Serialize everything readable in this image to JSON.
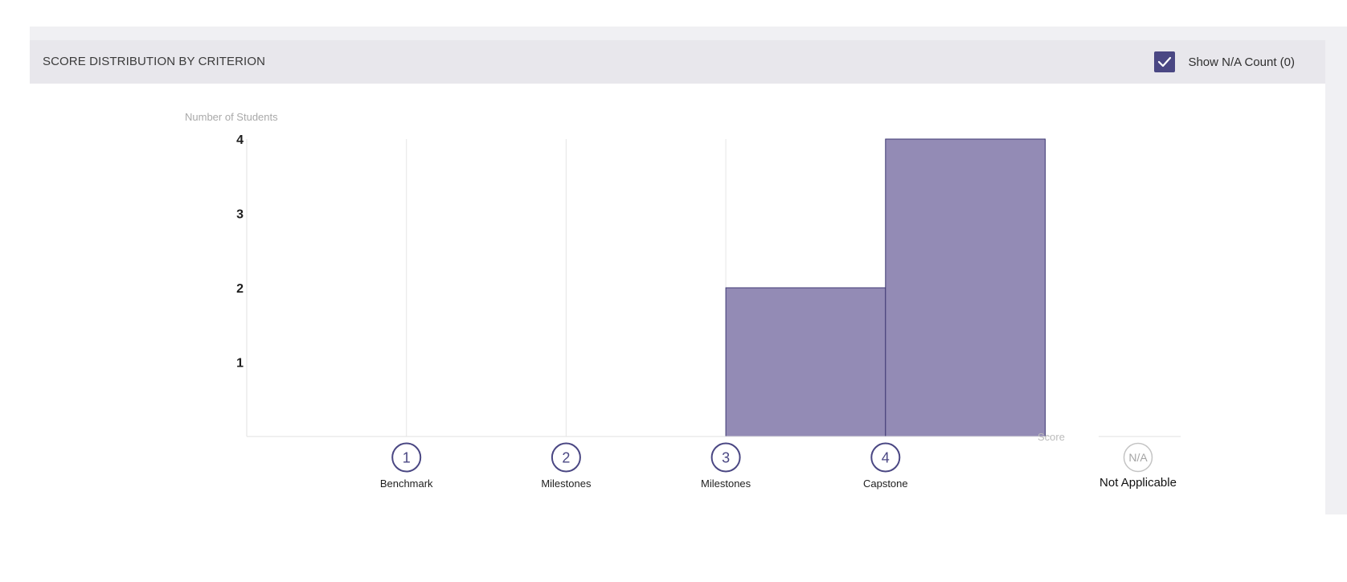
{
  "panel": {
    "title": "SCORE DISTRIBUTION BY CRITERION",
    "toggle": {
      "label": "Show N/A Count (0)",
      "checked": true
    }
  },
  "colors": {
    "bar_fill": "#938bb5",
    "bar_stroke": "#3f3a74",
    "accent": "#4a4783",
    "header_bg": "#e8e7ec"
  },
  "chart_data": {
    "type": "bar",
    "ylabel": "Number of Students",
    "xlabel": "Score",
    "ylim": [
      0,
      4
    ],
    "yticks": [
      1,
      2,
      3,
      4
    ],
    "grid": "vertical",
    "categories": [
      "1",
      "2",
      "3",
      "4"
    ],
    "category_labels": [
      "Benchmark",
      "Milestones",
      "Milestones",
      "Capstone"
    ],
    "values": [
      0,
      0,
      2,
      4
    ],
    "na": {
      "badge": "N/A",
      "label": "Not Applicable"
    }
  }
}
